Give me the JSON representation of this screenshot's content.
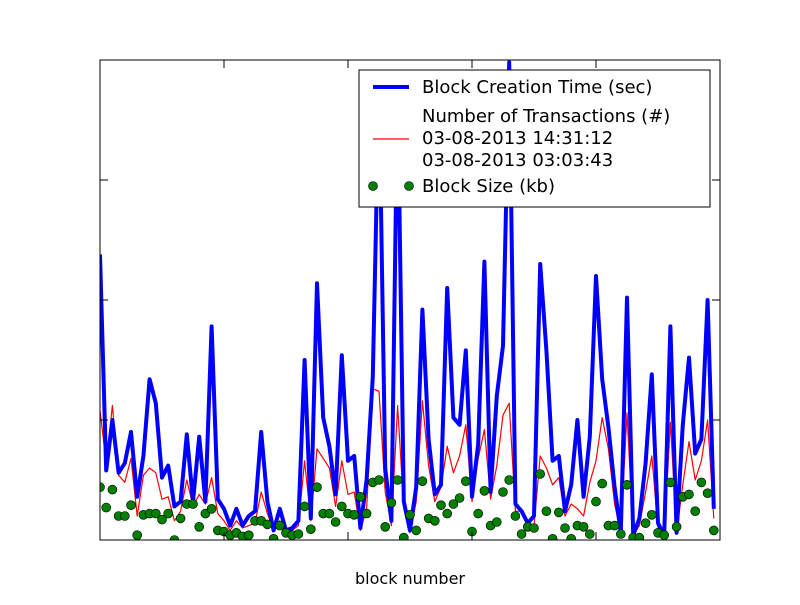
{
  "chart_data": {
    "type": "line",
    "title": "",
    "xlabel": "block number",
    "ylabel": "",
    "xlim": [
      0,
      100
    ],
    "ylim": [
      0,
      2000
    ],
    "grid": false,
    "legend_position": "top-right",
    "x_ticks": [
      0,
      20,
      40,
      60,
      80,
      100
    ],
    "y_ticks": [
      0,
      500,
      1000,
      1500,
      2000
    ],
    "x": [
      0,
      1,
      2,
      3,
      4,
      5,
      6,
      7,
      8,
      9,
      10,
      11,
      12,
      13,
      14,
      15,
      16,
      17,
      18,
      19,
      20,
      21,
      22,
      23,
      24,
      25,
      26,
      27,
      28,
      29,
      30,
      31,
      32,
      33,
      34,
      35,
      36,
      37,
      38,
      39,
      40,
      41,
      42,
      43,
      44,
      45,
      46,
      47,
      48,
      49,
      50,
      51,
      52,
      53,
      54,
      55,
      56,
      57,
      58,
      59,
      60,
      61,
      62,
      63,
      64,
      65,
      66,
      67,
      68,
      69,
      70,
      71,
      72,
      73,
      74,
      75,
      76,
      77,
      78,
      79,
      80,
      81,
      82,
      83,
      84,
      85,
      86,
      87,
      88,
      89,
      90,
      91,
      92,
      93,
      94,
      95,
      96,
      97,
      98,
      99
    ],
    "series": [
      {
        "name": "Block Creation Time (sec)",
        "style": "line-thick",
        "color": "#0000ff",
        "values": [
          1190,
          290,
          500,
          280,
          320,
          450,
          180,
          350,
          670,
          570,
          260,
          310,
          140,
          160,
          440,
          160,
          430,
          160,
          890,
          170,
          130,
          60,
          130,
          60,
          100,
          120,
          450,
          160,
          40,
          130,
          40,
          50,
          80,
          750,
          90,
          1070,
          510,
          390,
          190,
          770,
          330,
          350,
          50,
          250,
          680,
          1900,
          300,
          80,
          1900,
          160,
          40,
          220,
          960,
          420,
          190,
          230,
          1050,
          510,
          480,
          790,
          180,
          400,
          1160,
          200,
          600,
          810,
          1990,
          150,
          120,
          70,
          100,
          1150,
          790,
          330,
          350,
          120,
          230,
          500,
          180,
          430,
          1100,
          670,
          470,
          220,
          30,
          1010,
          20,
          90,
          320,
          690,
          70,
          20,
          890,
          30,
          480,
          760,
          360,
          420,
          1000,
          130
        ]
      },
      {
        "name": "Number of Transactions (#)\n03-08-2013 14:31:12\n03-08-2013 03:03:43",
        "style": "line-thin",
        "color": "#ff0000",
        "values": [
          540,
          320,
          560,
          270,
          240,
          340,
          100,
          270,
          300,
          280,
          170,
          180,
          80,
          120,
          250,
          140,
          190,
          150,
          260,
          110,
          80,
          40,
          80,
          50,
          60,
          70,
          200,
          110,
          40,
          80,
          40,
          40,
          60,
          330,
          80,
          380,
          340,
          300,
          140,
          330,
          190,
          200,
          40,
          130,
          630,
          620,
          200,
          60,
          560,
          130,
          30,
          160,
          580,
          310,
          160,
          220,
          390,
          280,
          350,
          480,
          160,
          340,
          460,
          170,
          310,
          520,
          570,
          120,
          120,
          60,
          60,
          350,
          300,
          230,
          260,
          100,
          150,
          130,
          100,
          240,
          330,
          510,
          380,
          150,
          30,
          530,
          20,
          60,
          200,
          350,
          50,
          20,
          490,
          30,
          230,
          410,
          250,
          330,
          500,
          90
        ]
      },
      {
        "name": "Block Size (kb)",
        "style": "markers",
        "color": "#007f00",
        "values": [
          220,
          135,
          210,
          100,
          100,
          145,
          20,
          105,
          110,
          110,
          85,
          110,
          0,
          90,
          150,
          150,
          55,
          110,
          130,
          40,
          35,
          20,
          30,
          15,
          20,
          80,
          80,
          65,
          5,
          60,
          30,
          20,
          25,
          140,
          45,
          220,
          110,
          110,
          75,
          140,
          110,
          105,
          180,
          110,
          240,
          250,
          55,
          155,
          250,
          10,
          105,
          40,
          245,
          90,
          80,
          145,
          110,
          150,
          175,
          245,
          35,
          110,
          205,
          60,
          75,
          200,
          250,
          100,
          25,
          55,
          50,
          275,
          120,
          5,
          115,
          50,
          5,
          60,
          55,
          25,
          160,
          235,
          60,
          60,
          25,
          230,
          10,
          10,
          70,
          105,
          30,
          20,
          240,
          55,
          180,
          190,
          120,
          240,
          195,
          40
        ]
      }
    ]
  }
}
